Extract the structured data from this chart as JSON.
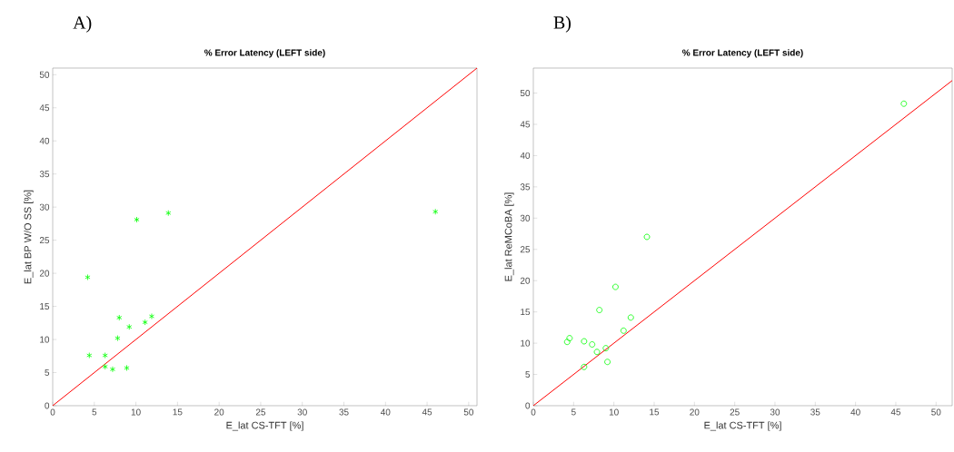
{
  "chart_data": [
    {
      "type": "scatter",
      "title": "% Error Latency (LEFT side)",
      "xlabel": "E_lat CS-TFT [%]",
      "ylabel": "E_lat BP W/O SS [%]",
      "annotations": [
        "A)"
      ],
      "xlim": [
        0,
        51
      ],
      "ylim": [
        0,
        51
      ],
      "xticks": [
        0,
        5,
        10,
        15,
        20,
        25,
        30,
        35,
        40,
        45,
        50
      ],
      "yticks": [
        0,
        5,
        10,
        15,
        20,
        25,
        30,
        35,
        40,
        45,
        50
      ],
      "grid": false,
      "series": [
        {
          "color": "#00ff00",
          "marker": "cross",
          "x": [
            4.2,
            10.1,
            13.9,
            4.4,
            6.3,
            6.3,
            7.2,
            8.9,
            7.8,
            8.0,
            9.2,
            11.1,
            11.9,
            46
          ],
          "values": [
            19.4,
            28.1,
            29.1,
            7.6,
            7.6,
            5.9,
            5.5,
            5.7,
            10.2,
            13.3,
            11.9,
            12.6,
            13.5,
            29.3
          ]
        },
        {
          "type": "line",
          "color": "#ff0000",
          "marker": "none",
          "x": [
            0,
            51
          ],
          "values": [
            0,
            51
          ]
        }
      ]
    },
    {
      "type": "scatter",
      "title": "% Error Latency (LEFT side)",
      "xlabel": "E_lat CS-TFT [%]",
      "ylabel": "E_lat ReMCoBA [%]",
      "annotations": [
        "B)"
      ],
      "xlim": [
        0,
        52
      ],
      "ylim": [
        0,
        54
      ],
      "xticks": [
        0,
        5,
        10,
        15,
        20,
        25,
        30,
        35,
        40,
        45,
        50
      ],
      "yticks": [
        0,
        5,
        10,
        15,
        20,
        25,
        30,
        35,
        40,
        45,
        50
      ],
      "grid": false,
      "series": [
        {
          "color": "#00ff00",
          "marker": "circle",
          "x": [
            4.2,
            4.5,
            6.3,
            6.3,
            7.3,
            7.9,
            8.2,
            9.0,
            9.2,
            10.2,
            11.2,
            12.1,
            14.1,
            46
          ],
          "values": [
            10.2,
            10.8,
            10.3,
            6.2,
            9.8,
            8.6,
            15.3,
            9.2,
            7.0,
            19.0,
            12.0,
            14.1,
            27.0,
            48.3
          ]
        },
        {
          "type": "line",
          "color": "#ff0000",
          "marker": "none",
          "x": [
            0,
            52
          ],
          "values": [
            0,
            52
          ]
        }
      ]
    }
  ]
}
